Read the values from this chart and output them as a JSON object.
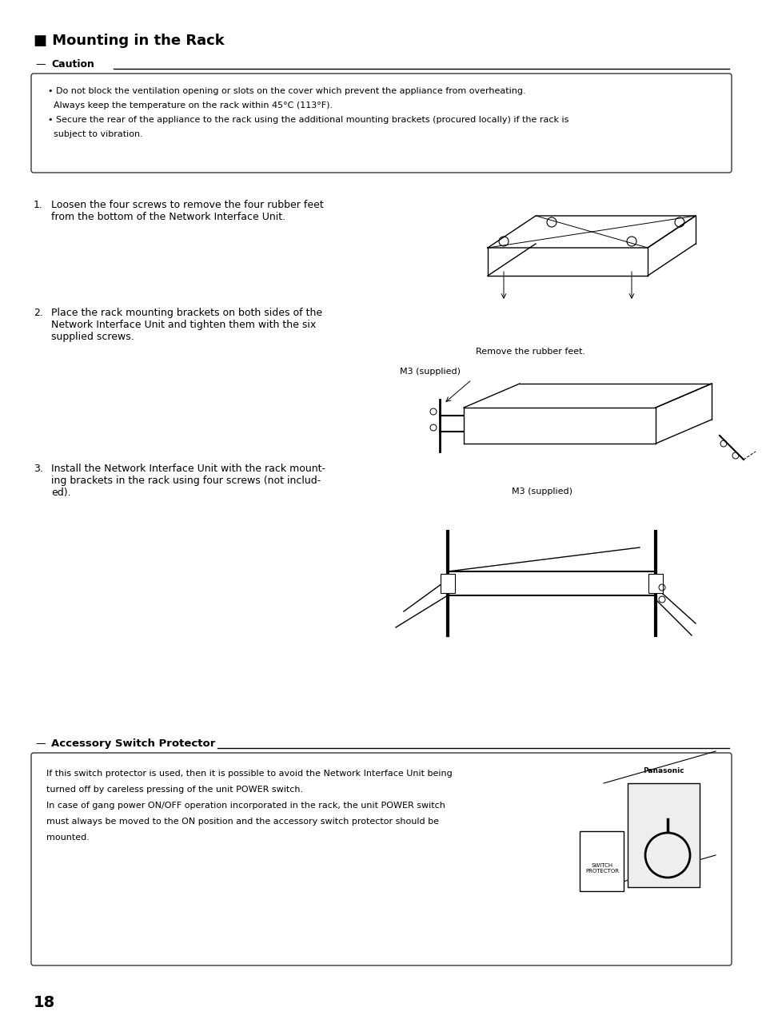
{
  "bg_color": "#ffffff",
  "title": "■ Mounting in the Rack",
  "caution_label": "Caution",
  "caution_lines": [
    "• Do not block the ventilation opening or slots on the cover which prevent the appliance from overheating.",
    "  Always keep the temperature on the rack within 45°C (113°F).",
    "• Secure the rear of the appliance to the rack using the additional mounting brackets (procured locally) if the rack is",
    "  subject to vibration."
  ],
  "step1_num": "1.",
  "step1_text": "Loosen the four screws to remove the four rubber feet\nfrom the bottom of the Network Interface Unit.",
  "step2_num": "2.",
  "step2_text": "Place the rack mounting brackets on both sides of the\nNetwork Interface Unit and tighten them with the six\nsupplied screws.",
  "step3_num": "3.",
  "step3_text": "Install the Network Interface Unit with the rack mount-\ning brackets in the rack using four screws (not includ-\ned).",
  "label_remove": "Remove the rubber feet.",
  "label_m3_1": "M3 (supplied)",
  "label_m3_2": "M3 (supplied)",
  "acc_label": "Accessory Switch Protector",
  "acc_lines": [
    "If this switch protector is used, then it is possible to avoid the Network Interface Unit being",
    "turned off by careless pressing of the unit POWER switch.",
    "In case of gang power ON/OFF operation incorporated in the rack, the unit POWER switch",
    "must always be moved to the ON position and the accessory switch protector should be",
    "mounted."
  ],
  "page_num": "18"
}
